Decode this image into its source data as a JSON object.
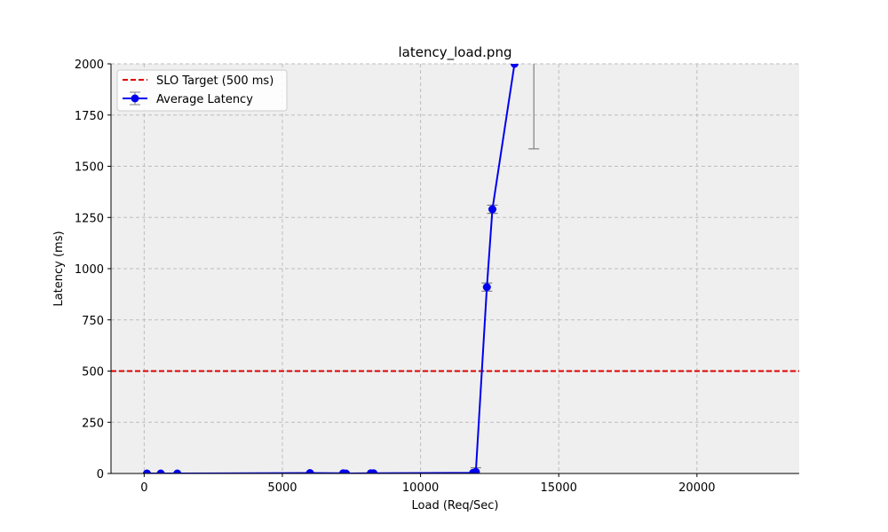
{
  "chart_data": {
    "type": "line",
    "title": "latency_load.png",
    "xlabel": "Load (Req/Sec)",
    "ylabel": "Latency (ms)",
    "xlim": [
      -1200,
      23700
    ],
    "ylim": [
      0,
      2000
    ],
    "xticks": [
      0,
      5000,
      10000,
      15000,
      20000
    ],
    "xtick_labels": [
      "0",
      "5000",
      "10000",
      "15000",
      "20000"
    ],
    "yticks": [
      0,
      250,
      500,
      750,
      1000,
      1250,
      1500,
      1750,
      2000
    ],
    "ytick_labels": [
      "0",
      "250",
      "500",
      "750",
      "1000",
      "1250",
      "1500",
      "1750",
      "2000"
    ],
    "grid": true,
    "grid_style": "dashed",
    "background": "#efefef",
    "legend_position": "upper-left",
    "reference_line": {
      "name": "SLO Target (500 ms)",
      "y": 500,
      "color": "#e00000",
      "style": "dashed"
    },
    "series": [
      {
        "name": "Average Latency",
        "color": "#0000ee",
        "errorbar_color": "#808080",
        "marker": "circle",
        "points": [
          {
            "x": 100,
            "y": 0
          },
          {
            "x": 600,
            "y": 0
          },
          {
            "x": 1200,
            "y": 0
          },
          {
            "x": 6000,
            "y": 2
          },
          {
            "x": 7200,
            "y": 1
          },
          {
            "x": 7300,
            "y": 0
          },
          {
            "x": 8200,
            "y": 1
          },
          {
            "x": 8300,
            "y": 1
          },
          {
            "x": 11900,
            "y": 3
          },
          {
            "x": 12000,
            "y": 8,
            "xerr": 150,
            "yerr": 20
          },
          {
            "x": 12400,
            "y": 910,
            "xerr": 150,
            "yerr": 20
          },
          {
            "x": 12600,
            "y": 1290,
            "xerr": 150,
            "yerr": 20
          },
          {
            "x": 13400,
            "y": 2000
          },
          {
            "x": 14100,
            "y": 2270,
            "yerr_low": 1585
          }
        ]
      }
    ]
  }
}
